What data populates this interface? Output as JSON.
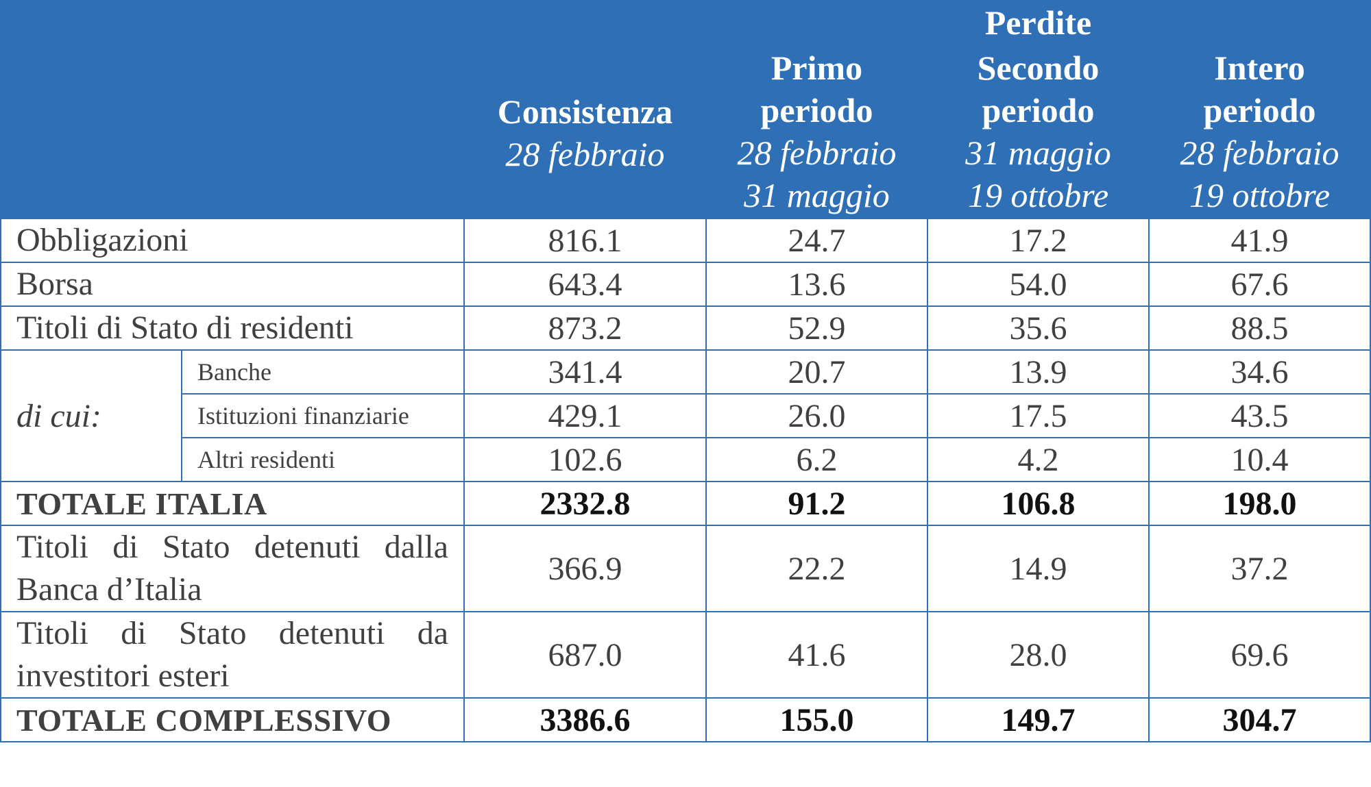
{
  "header": {
    "group": "Perdite",
    "columns": [
      {
        "title": "Consistenza",
        "date1": "28 febbraio",
        "date2": ""
      },
      {
        "title_line1": "Primo",
        "title_line2": "periodo",
        "date1": "28 febbraio",
        "date2": "31 maggio"
      },
      {
        "title_line1": "Secondo",
        "title_line2": "periodo",
        "date1": "31 maggio",
        "date2": "19 ottobre"
      },
      {
        "title_line1": "Intero",
        "title_line2": "periodo",
        "date1": "28 febbraio",
        "date2": "19 ottobre"
      }
    ]
  },
  "rows": [
    {
      "label": "Obbligazioni",
      "values": [
        "816.1",
        "24.7",
        "17.2",
        "41.9"
      ]
    },
    {
      "label": "Borsa",
      "values": [
        "643.4",
        "13.6",
        "54.0",
        "67.6"
      ]
    },
    {
      "label": "Titoli di Stato di residenti",
      "values": [
        "873.2",
        "52.9",
        "35.6",
        "88.5"
      ]
    }
  ],
  "dicui": {
    "label": "di cui:",
    "rows": [
      {
        "label": "Banche",
        "values": [
          "341.4",
          "20.7",
          "13.9",
          "34.6"
        ]
      },
      {
        "label": "Istituzioni finanziarie",
        "values": [
          "429.1",
          "26.0",
          "17.5",
          "43.5"
        ]
      },
      {
        "label": "Altri residenti",
        "values": [
          "102.6",
          "6.2",
          "4.2",
          "10.4"
        ]
      }
    ]
  },
  "totale_italia": {
    "label": "TOTALE ITALIA",
    "values": [
      "2332.8",
      "91.2",
      "106.8",
      "198.0"
    ]
  },
  "bdi": {
    "label": "Titoli di Stato detenuti dalla Banca d’Italia",
    "values": [
      "366.9",
      "22.2",
      "14.9",
      "37.2"
    ]
  },
  "esteri": {
    "label": "Titoli di Stato detenuti da investitori esteri",
    "values": [
      "687.0",
      "41.6",
      "28.0",
      "69.6"
    ]
  },
  "totale_complessivo": {
    "label": "TOTALE COMPLESSIVO",
    "values": [
      "3386.6",
      "155.0",
      "149.7",
      "304.7"
    ]
  },
  "colors": {
    "header_bg": "#2e6fb5",
    "header_text": "#ffffff",
    "body_text": "#404040",
    "grid": "#2e6fb5"
  }
}
